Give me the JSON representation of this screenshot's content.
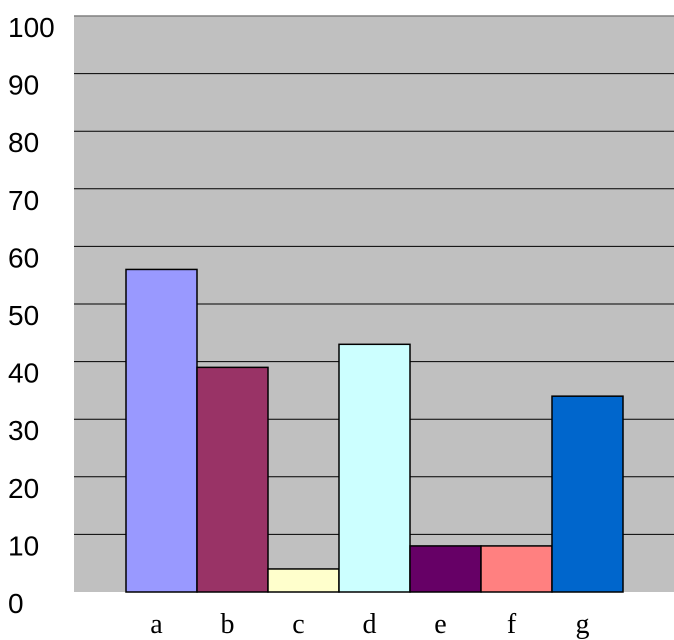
{
  "chart_data": {
    "type": "bar",
    "title": "",
    "xlabel": "",
    "ylabel": "",
    "categories": [
      "a",
      "b",
      "c",
      "d",
      "e",
      "f",
      "g"
    ],
    "values": [
      56,
      39,
      4,
      43,
      8,
      8,
      34
    ],
    "ylim": [
      0,
      100
    ],
    "yticks": [
      "0",
      "10",
      "20",
      "30",
      "40",
      "50",
      "60",
      "70",
      "80",
      "90",
      "100"
    ],
    "grid": true,
    "legend": "none",
    "colors": {
      "plot_background": "#c0c0c0",
      "gridline": "#000000",
      "bar_outline": "#000000",
      "bars": [
        "#9999ff",
        "#993366",
        "#ffffcc",
        "#ccffff",
        "#660066",
        "#ff8080",
        "#0066cc"
      ]
    }
  }
}
